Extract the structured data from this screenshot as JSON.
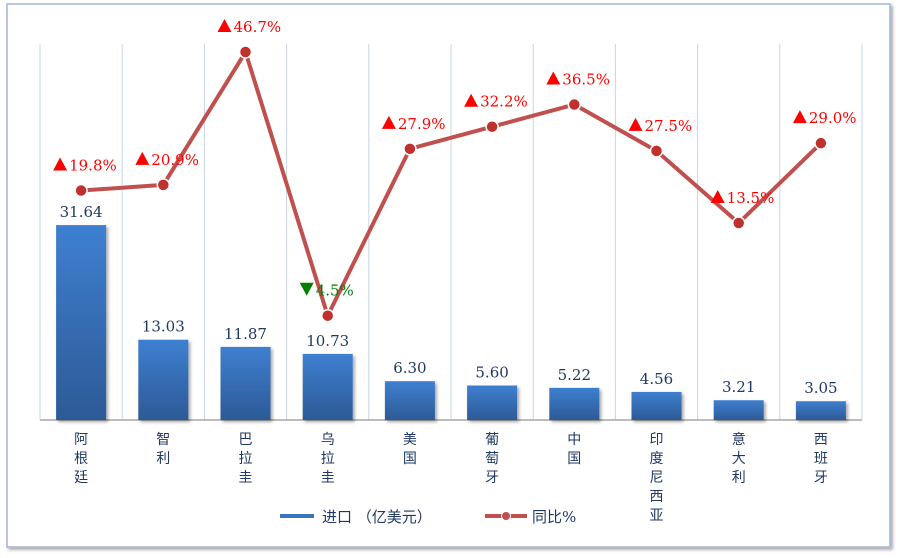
{
  "chart_data": {
    "type": "bar",
    "categories": [
      "阿根廷",
      "智利",
      "巴拉圭",
      "乌拉圭",
      "美国",
      "葡萄牙",
      "中国",
      "印度尼西亚",
      "意大利",
      "西班牙"
    ],
    "series": [
      {
        "name": "进口 （亿美元）",
        "type": "bar",
        "values": [
          31.64,
          13.03,
          11.87,
          10.73,
          6.3,
          5.6,
          5.22,
          4.56,
          3.21,
          3.05
        ],
        "labels": [
          "31.64",
          "13.03",
          "11.87",
          "10.73",
          "6.30",
          "5.60",
          "5.22",
          "4.56",
          "3.21",
          "3.05"
        ],
        "color": "#3a73bf"
      },
      {
        "name": "同比%",
        "type": "line",
        "values": [
          19.8,
          20.9,
          46.7,
          -4.5,
          27.9,
          32.2,
          36.5,
          27.5,
          13.5,
          29.0
        ],
        "labels": [
          "19.8%",
          "20.9%",
          "46.7%",
          "4.5%",
          "27.9%",
          "32.2%",
          "36.5%",
          "27.5%",
          "13.5%",
          "29.0%"
        ],
        "color": "#c0504d"
      }
    ],
    "up_color": "#ff0000",
    "down_color": "#008000",
    "legend": "bottom"
  }
}
